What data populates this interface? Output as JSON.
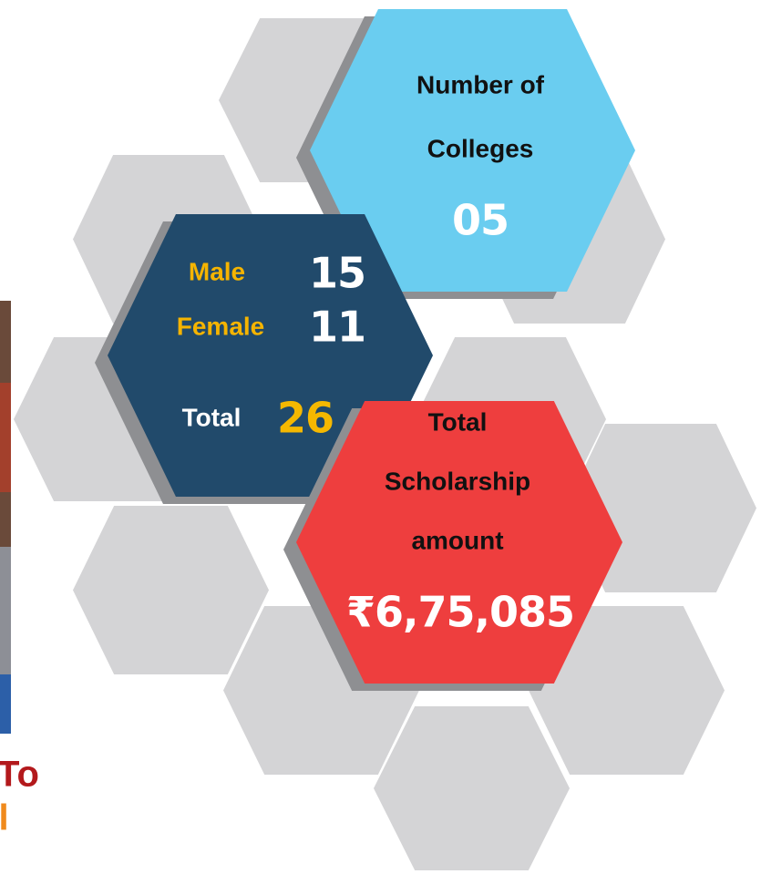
{
  "colleges": {
    "label_line1": "Number of",
    "label_line2": "Colleges",
    "value": "05"
  },
  "students": {
    "male_label": "Male",
    "male_value": "15",
    "female_label": "Female",
    "female_value": "11",
    "total_label": "Total",
    "total_value": "26"
  },
  "scholarship": {
    "line1": "Total",
    "line2": "Scholarship",
    "line3": "amount",
    "value": "₹6,75,085"
  },
  "side_text": {
    "line1": "To",
    "line2": "l"
  }
}
